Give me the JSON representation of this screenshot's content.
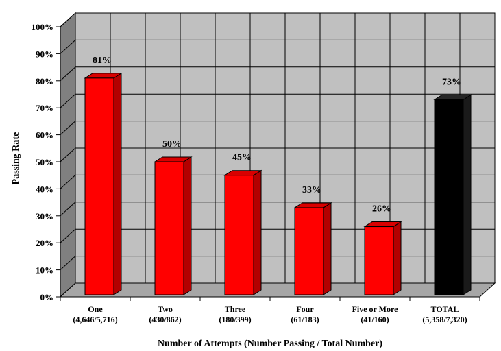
{
  "chart_data": {
    "type": "bar",
    "title": "",
    "xlabel": "Number of Attempts (Number Passing / Total Number)",
    "ylabel": "Passing Rate",
    "ylim": [
      0,
      100
    ],
    "yticks": [
      0,
      10,
      20,
      30,
      40,
      50,
      60,
      70,
      80,
      90,
      100
    ],
    "ytick_suffix": "%",
    "grid": true,
    "style": "3d",
    "categories": [
      {
        "label": "One",
        "sublabel": "(4,646/5,716)"
      },
      {
        "label": "Two",
        "sublabel": "(430/862)"
      },
      {
        "label": "Three",
        "sublabel": "(180/399)"
      },
      {
        "label": "Four",
        "sublabel": "(61/183)"
      },
      {
        "label": "Five or More",
        "sublabel": "(41/160)"
      },
      {
        "label": "TOTAL",
        "sublabel": "(5,358/7,320)"
      }
    ],
    "values": [
      81,
      50,
      45,
      33,
      26,
      73
    ],
    "value_labels": [
      "81%",
      "50%",
      "45%",
      "33%",
      "26%",
      "73%"
    ],
    "bar_colors": [
      "#ff0000",
      "#ff0000",
      "#ff0000",
      "#ff0000",
      "#ff0000",
      "#000000"
    ],
    "colors": {
      "wall": "#c0c0c0",
      "side_wall": "#808080",
      "floor": "#a6a6a6",
      "grid": "#000000"
    }
  }
}
